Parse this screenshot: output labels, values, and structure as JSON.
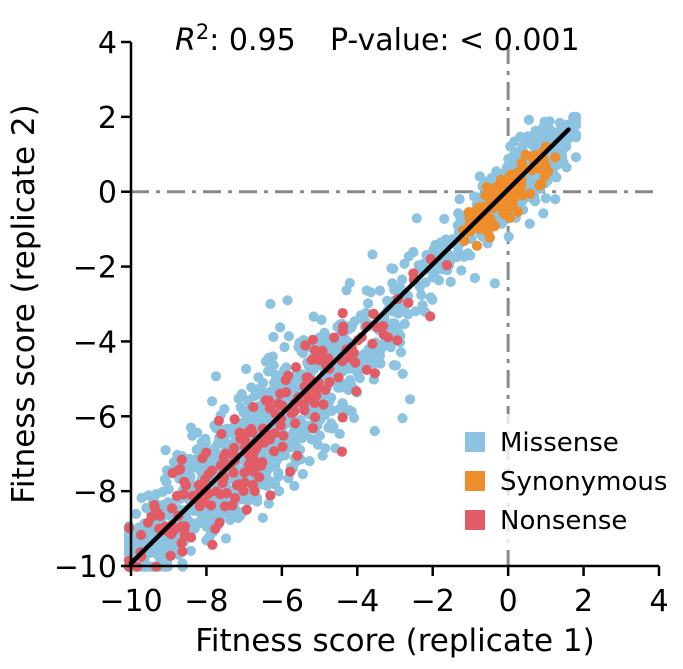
{
  "titles": {
    "r2_base": "R",
    "r2_sup": "2",
    "r2_rest": ": 0.95",
    "pvalue": "P-value: < 0.001"
  },
  "chart_data": {
    "type": "scatter",
    "title": "R²: 0.95    P-value: < 0.001",
    "stats": {
      "r_squared": 0.95,
      "p_value": "< 0.001"
    },
    "xlabel": "Fitness score (replicate 1)",
    "ylabel": "Fitness score (replicate 2)",
    "xlim": [
      -10,
      4
    ],
    "ylim": [
      -10,
      4
    ],
    "xticks": {
      "values": [
        -10,
        -8,
        -6,
        -4,
        -2,
        0,
        2,
        4
      ],
      "labels": [
        "−10",
        "−8",
        "−6",
        "−4",
        "−2",
        "0",
        "2",
        "4"
      ]
    },
    "yticks": {
      "values": [
        -10,
        -8,
        -6,
        -4,
        -2,
        0,
        2,
        4
      ],
      "labels": [
        "−10",
        "−8",
        "−6",
        "−4",
        "−2",
        "0",
        "2",
        "4"
      ]
    },
    "grid": false,
    "legend_position": "lower-right",
    "reference_lines": [
      {
        "orientation": "horizontal",
        "value": 0,
        "color": "#8a8a8a",
        "style": "dashdot",
        "width": 3
      },
      {
        "orientation": "vertical",
        "value": 0,
        "color": "#8a8a8a",
        "style": "dashdot",
        "width": 3
      }
    ],
    "fit_line": {
      "x1": -10.0,
      "y1": -9.93,
      "x2": 1.6,
      "y2": 1.66,
      "color": "#000000",
      "width": 4.5
    },
    "legend": {
      "items": [
        {
          "label": "Missense",
          "color": "#8BC3E1"
        },
        {
          "label": "Synonymous",
          "color": "#EE8D2B"
        },
        {
          "label": "Nonsense",
          "color": "#E25C66"
        }
      ]
    },
    "seed": 42,
    "series": [
      {
        "name": "Missense",
        "color": "#8BC3E1",
        "marker": "circle",
        "marker_radius_px": 5.1,
        "count": 1600,
        "along_diagonal_mixture": [
          {
            "weight": 0.36,
            "mean": -7.6,
            "sd": 1.35
          },
          {
            "weight": 0.16,
            "mean": -5.0,
            "sd": 1.3
          },
          {
            "weight": 0.14,
            "uniform": [
              -9.8,
              -0.8
            ]
          },
          {
            "weight": 0.34,
            "mean": 0.15,
            "sd": 0.72,
            "clip": [
              -2.4,
              1.8
            ]
          }
        ],
        "scatter_noise": {
          "threshold": -2,
          "sd_below": 0.6,
          "sd_above": 0.3
        },
        "clamp_x": [
          -10.05,
          1.8
        ],
        "clamp_y": [
          -10.02,
          2.0
        ],
        "extra_points": [
          [
            1.25,
            -0.2
          ],
          [
            0.55,
            1.92
          ],
          [
            1.1,
            1.88
          ],
          [
            -2.6,
            -5.55
          ],
          [
            -2.8,
            -6.05
          ],
          [
            -5.85,
            -2.9
          ],
          [
            -6.3,
            -3.0
          ],
          [
            -3.05,
            -3.2
          ],
          [
            -0.35,
            -2.45
          ]
        ]
      },
      {
        "name": "Nonsense",
        "color": "#E25C66",
        "marker": "circle",
        "marker_radius_px": 5.1,
        "count": 205,
        "along_diagonal_mixture": [
          {
            "weight": 0.68,
            "mean": -7.4,
            "sd": 1.3
          },
          {
            "weight": 0.32,
            "mean": -4.5,
            "sd": 1.4,
            "clip": [
              -9.2,
              -1.9
            ]
          }
        ],
        "scatter_noise": {
          "threshold": -2,
          "sd_below": 0.5,
          "sd_above": 0.4
        },
        "clamp_x": [
          -10.05,
          -1.5
        ],
        "clamp_y": [
          -10.02,
          -1.4
        ],
        "extra_points": [
          [
            -2.05,
            -1.8
          ],
          [
            -2.5,
            -2.35
          ]
        ]
      },
      {
        "name": "Synonymous",
        "color": "#EE8D2B",
        "marker": "circle",
        "marker_radius_px": 5.1,
        "count": 135,
        "along_diagonal_mixture": [
          {
            "weight": 1.0,
            "mean": -0.08,
            "sd": 0.5,
            "clip": [
              -1.45,
              1.02
            ]
          }
        ],
        "scatter_noise": {
          "threshold": -9,
          "sd_below": 0.21,
          "sd_above": 0.21
        },
        "clamp_x": [
          -1.7,
          1.25
        ],
        "clamp_y": [
          -1.8,
          1.2
        ],
        "extra_points": []
      }
    ]
  }
}
